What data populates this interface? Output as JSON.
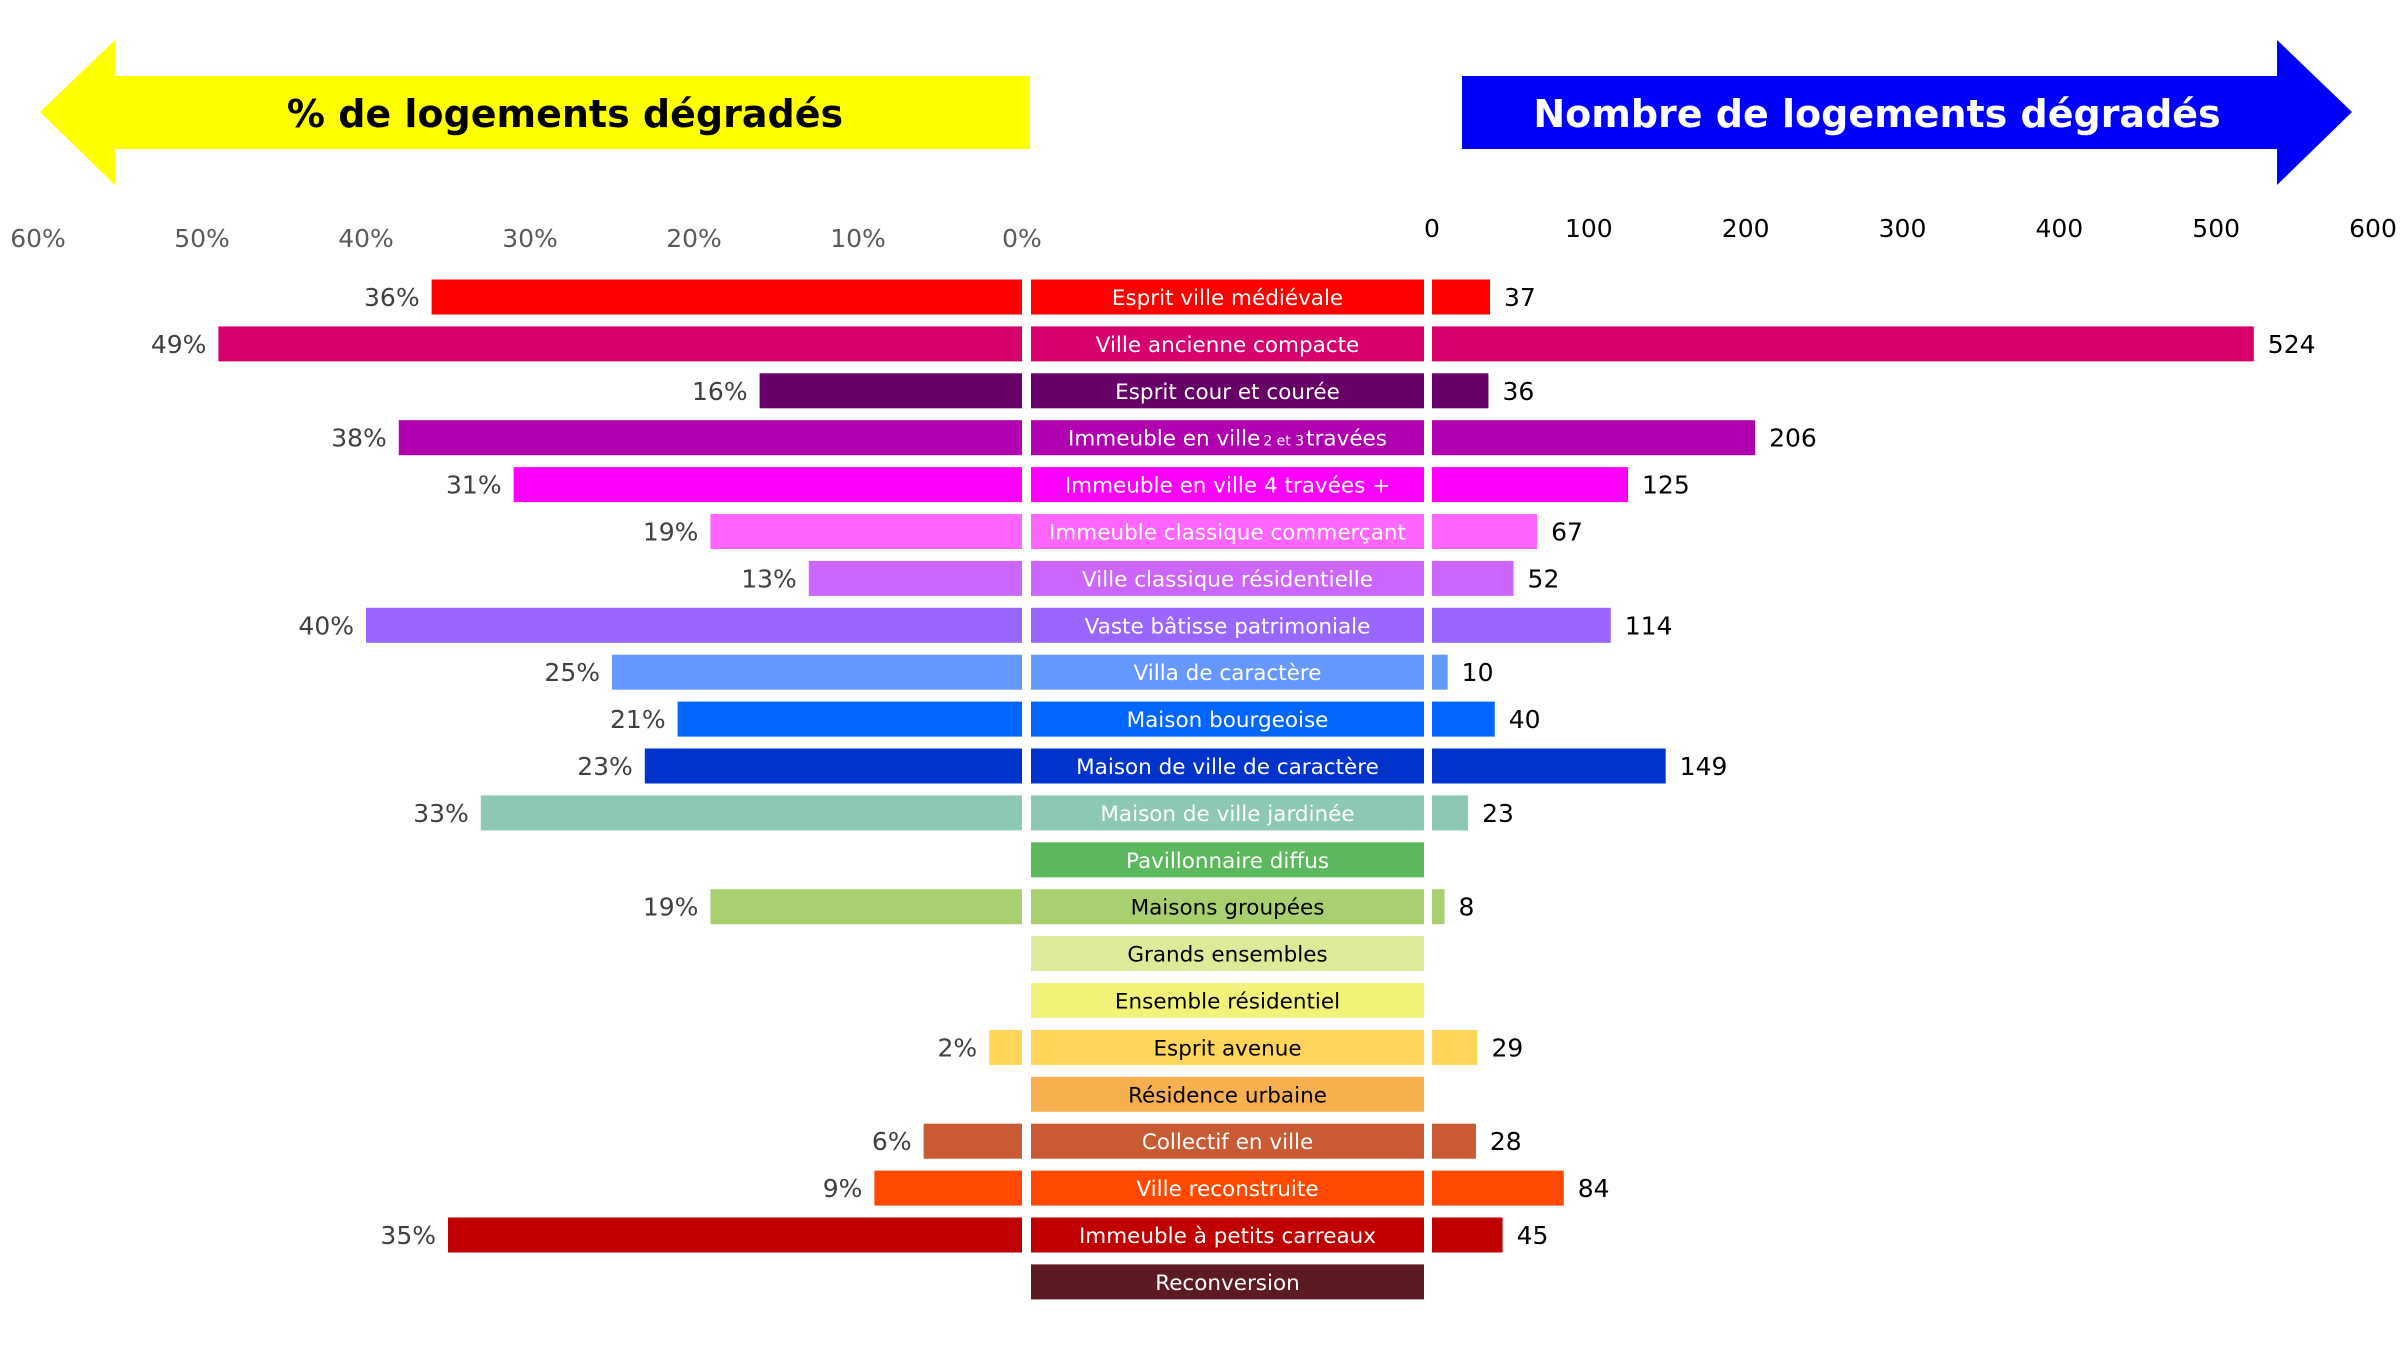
{
  "headers": {
    "left": "% de logements dégradés",
    "right": "Nombre de logements dégradés"
  },
  "colors": {
    "left_arrow": "#ffff00",
    "right_arrow": "#0000ff"
  },
  "chart_data": [
    {
      "type": "bar",
      "orientation": "horizontal",
      "title": "% de logements dégradés",
      "direction": "right-to-left",
      "xlim": [
        0,
        60
      ],
      "ticks": [
        "60%",
        "50%",
        "40%",
        "30%",
        "20%",
        "10%",
        "0%"
      ],
      "categories": [
        "Esprit ville médiévale",
        "Ville ancienne compacte",
        "Esprit cour et courée",
        "Immeuble en ville 2 et 3 travées",
        "Immeuble en ville 4 travées +",
        "Immeuble classique commerçant",
        "Ville classique résidentielle",
        "Vaste bâtisse patrimoniale",
        "Villa de caractère",
        "Maison bourgeoise",
        "Maison de ville de caractère",
        "Maison de ville jardinée",
        "Pavillonnaire diffus",
        "Maisons groupées",
        "Grands ensembles",
        "Ensemble résidentiel",
        "Esprit avenue",
        "Résidence urbaine",
        "Collectif en ville",
        "Ville reconstruite",
        "Immeuble à petits carreaux",
        "Reconversion"
      ],
      "values": [
        36,
        49,
        16,
        38,
        31,
        19,
        13,
        40,
        25,
        21,
        23,
        33,
        null,
        19,
        null,
        null,
        2,
        null,
        6,
        9,
        35,
        null
      ],
      "labels": [
        "36%",
        "49%",
        "16%",
        "38%",
        "31%",
        "19%",
        "13%",
        "40%",
        "25%",
        "21%",
        "23%",
        "33%",
        "",
        "19%",
        "",
        "",
        "2%",
        "",
        "6%",
        "9%",
        "35%",
        ""
      ]
    },
    {
      "type": "bar",
      "orientation": "horizontal",
      "title": "Nombre de logements dégradés",
      "xlim": [
        0,
        600
      ],
      "ticks": [
        "0",
        "100",
        "200",
        "300",
        "400",
        "500",
        "600"
      ],
      "categories": [
        "Esprit ville médiévale",
        "Ville ancienne compacte",
        "Esprit cour et courée",
        "Immeuble en ville 2 et 3 travées",
        "Immeuble en ville 4 travées +",
        "Immeuble classique commerçant",
        "Ville classique résidentielle",
        "Vaste bâtisse patrimoniale",
        "Villa de caractère",
        "Maison bourgeoise",
        "Maison de ville de caractère",
        "Maison de ville jardinée",
        "Pavillonnaire diffus",
        "Maisons groupées",
        "Grands ensembles",
        "Ensemble résidentiel",
        "Esprit avenue",
        "Résidence urbaine",
        "Collectif en ville",
        "Ville reconstruite",
        "Immeuble à petits carreaux",
        "Reconversion"
      ],
      "values": [
        37,
        524,
        36,
        206,
        125,
        67,
        52,
        114,
        10,
        40,
        149,
        23,
        null,
        8,
        null,
        null,
        29,
        null,
        28,
        84,
        45,
        null
      ],
      "labels": [
        "37",
        "524",
        "36",
        "206",
        "125",
        "67",
        "52",
        "114",
        "10",
        "40",
        "149",
        "23",
        "",
        "8",
        "",
        "",
        "29",
        "",
        "28",
        "84",
        "45",
        ""
      ]
    }
  ],
  "rows": [
    {
      "label": "Esprit ville médiévale",
      "color": "#ff0000",
      "text_color": "#ffffff"
    },
    {
      "label": "Ville ancienne compacte",
      "color": "#d6006e",
      "text_color": "#ffffff"
    },
    {
      "label": "Esprit cour et courée",
      "color": "#660066",
      "text_color": "#ffffff"
    },
    {
      "label": "Immeuble en ville",
      "label_sub": "2 et 3",
      "label_after": "travées",
      "color": "#b000b0",
      "text_color": "#ffffff"
    },
    {
      "label": "Immeuble en ville 4 travées +",
      "color": "#ff00ff",
      "text_color": "#ffffff"
    },
    {
      "label": "Immeuble classique commerçant",
      "color": "#ff66ff",
      "text_color": "#ffffff"
    },
    {
      "label": "Ville classique résidentielle",
      "color": "#cc66ff",
      "text_color": "#ffffff"
    },
    {
      "label": "Vaste bâtisse patrimoniale",
      "color": "#9966ff",
      "text_color": "#ffffff"
    },
    {
      "label": "Villa de caractère",
      "color": "#6699ff",
      "text_color": "#ffffff"
    },
    {
      "label": "Maison bourgeoise",
      "color": "#0066ff",
      "text_color": "#ffffff"
    },
    {
      "label": "Maison de ville de caractère",
      "color": "#0033cc",
      "text_color": "#ffffff"
    },
    {
      "label": "Maison de ville jardinée",
      "color": "#8cc8b4",
      "text_color": "#ffffff"
    },
    {
      "label": "Pavillonnaire diffus",
      "color": "#5cb85c",
      "text_color": "#ffffff"
    },
    {
      "label": "Maisons groupées",
      "color": "#a8d070",
      "text_color": "#000000"
    },
    {
      "label": "Grands ensembles",
      "color": "#dcea9a",
      "text_color": "#000000"
    },
    {
      "label": "Ensemble résidentiel",
      "color": "#f2f27a",
      "text_color": "#000000"
    },
    {
      "label": "Esprit avenue",
      "color": "#ffd659",
      "text_color": "#000000"
    },
    {
      "label": "Résidence urbaine",
      "color": "#f7b050",
      "text_color": "#000000"
    },
    {
      "label": "Collectif en ville",
      "color": "#c85a34",
      "text_color": "#ffffff"
    },
    {
      "label": "Ville reconstruite",
      "color": "#ff4800",
      "text_color": "#ffffff"
    },
    {
      "label": "Immeuble à petits carreaux",
      "color": "#c00000",
      "text_color": "#ffffff"
    },
    {
      "label": "Reconversion",
      "color": "#5c1a22",
      "text_color": "#ffffff"
    }
  ]
}
